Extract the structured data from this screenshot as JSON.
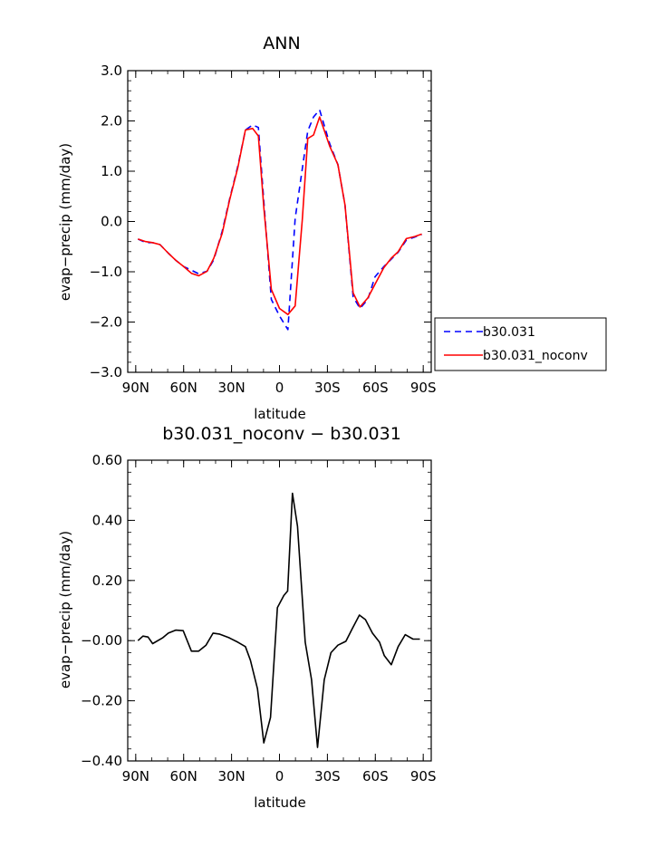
{
  "chart_data": [
    {
      "type": "line",
      "title": "ANN",
      "xlabel": "latitude",
      "ylabel": "evap−precip (mm/day)",
      "x_ticks": [
        {
          "value": -90,
          "label": "90N"
        },
        {
          "value": -60,
          "label": "60N"
        },
        {
          "value": -30,
          "label": "30N"
        },
        {
          "value": 0,
          "label": "0"
        },
        {
          "value": 30,
          "label": "30S"
        },
        {
          "value": 60,
          "label": "60S"
        },
        {
          "value": 90,
          "label": "90S"
        }
      ],
      "xlim": [
        -95,
        95
      ],
      "y_ticks": [
        {
          "value": 3.0,
          "label": "3.0"
        },
        {
          "value": 2.0,
          "label": "2.0"
        },
        {
          "value": 1.0,
          "label": "1.0"
        },
        {
          "value": 0.0,
          "label": "0.0"
        },
        {
          "value": -1.0,
          "label": "−1.0"
        },
        {
          "value": -2.0,
          "label": "−2.0"
        },
        {
          "value": -3.0,
          "label": "−3.0"
        }
      ],
      "ylim": [
        -3.0,
        3.0
      ],
      "legend": {
        "position": "right"
      },
      "series": [
        {
          "name": "b30.031",
          "color": "#0000ff",
          "dash": true,
          "x": [
            -88.6,
            -83.7,
            -79.5,
            -74.8,
            -69.6,
            -65.0,
            -59.9,
            -55.1,
            -50.6,
            -45.3,
            -41.1,
            -35.9,
            -31.2,
            -26.1,
            -21.3,
            -16.8,
            -13.2,
            -9.8,
            -5.1,
            0.0,
            5.3,
            9.8,
            14.3,
            17.7,
            21.3,
            25.1,
            31.4,
            36.6,
            41.0,
            46.1,
            50.4,
            55.3,
            59.8,
            65.3,
            70.0,
            74.3,
            79.4,
            84.6,
            89.1
          ],
          "y": [
            -0.35,
            -0.42,
            -0.42,
            -0.46,
            -0.63,
            -0.77,
            -0.9,
            -0.97,
            -1.04,
            -0.99,
            -0.76,
            -0.2,
            0.45,
            1.1,
            1.82,
            1.92,
            1.87,
            0.4,
            -1.55,
            -1.88,
            -2.15,
            0.06,
            1.05,
            1.8,
            2.08,
            2.22,
            1.55,
            1.13,
            0.33,
            -1.5,
            -1.73,
            -1.55,
            -1.1,
            -0.9,
            -0.75,
            -0.61,
            -0.37,
            -0.31,
            -0.26
          ]
        },
        {
          "name": "b30.031_noconv",
          "color": "#ff0000",
          "dash": false,
          "x": [
            -88.6,
            -83.7,
            -79.5,
            -74.8,
            -69.6,
            -65.0,
            -59.9,
            -55.1,
            -50.6,
            -45.3,
            -41.1,
            -35.9,
            -31.2,
            -26.1,
            -21.3,
            -16.8,
            -13.2,
            -9.8,
            -5.1,
            0.0,
            5.3,
            9.8,
            14.3,
            17.7,
            21.3,
            25.1,
            31.4,
            36.6,
            41.0,
            46.1,
            50.4,
            55.3,
            59.8,
            65.3,
            70.0,
            74.3,
            79.4,
            84.6,
            89.1
          ],
          "y": [
            -0.35,
            -0.4,
            -0.42,
            -0.46,
            -0.63,
            -0.77,
            -0.9,
            -1.03,
            -1.08,
            -0.99,
            -0.73,
            -0.24,
            0.43,
            1.07,
            1.82,
            1.85,
            1.7,
            0.28,
            -1.35,
            -1.73,
            -1.85,
            -1.68,
            0.04,
            1.65,
            1.72,
            2.08,
            1.5,
            1.13,
            0.33,
            -1.42,
            -1.7,
            -1.52,
            -1.25,
            -0.92,
            -0.73,
            -0.6,
            -0.34,
            -0.3,
            -0.25
          ]
        }
      ]
    },
    {
      "type": "line",
      "title": "b30.031_noconv − b30.031",
      "xlabel": "latitude",
      "ylabel": "evap−precip (mm/day)",
      "x_ticks": [
        {
          "value": -90,
          "label": "90N"
        },
        {
          "value": -60,
          "label": "60N"
        },
        {
          "value": -30,
          "label": "30N"
        },
        {
          "value": 0,
          "label": "0"
        },
        {
          "value": 30,
          "label": "30S"
        },
        {
          "value": 60,
          "label": "60S"
        },
        {
          "value": 90,
          "label": "90S"
        }
      ],
      "xlim": [
        -95,
        95
      ],
      "y_ticks": [
        {
          "value": 0.6,
          "label": "0.60"
        },
        {
          "value": 0.4,
          "label": "0.40"
        },
        {
          "value": 0.2,
          "label": "0.20"
        },
        {
          "value": 0.0,
          "label": "−0.00"
        },
        {
          "value": -0.2,
          "label": "−0.20"
        },
        {
          "value": -0.4,
          "label": "−0.40"
        }
      ],
      "ylim": [
        -0.4,
        0.6
      ],
      "series": [
        {
          "color": "#000000",
          "dash": false,
          "x": [
            -88.6,
            -85.5,
            -82.3,
            -79.4,
            -73.0,
            -69.6,
            -65.0,
            -60.3,
            -55.1,
            -50.6,
            -46.0,
            -41.6,
            -37.7,
            -31.7,
            -26.1,
            -21.3,
            -18.2,
            -13.8,
            -9.8,
            -5.6,
            -1.3,
            2.7,
            5.1,
            8.1,
            11.3,
            16.1,
            20.1,
            23.8,
            28.0,
            32.2,
            36.6,
            41.6,
            45.6,
            50.0,
            53.8,
            58.2,
            62.6,
            65.6,
            70.0,
            74.3,
            78.7,
            83.6,
            87.9
          ],
          "y": [
            0.0,
            0.015,
            0.012,
            -0.01,
            0.01,
            0.025,
            0.035,
            0.033,
            -0.035,
            -0.035,
            -0.015,
            0.025,
            0.022,
            0.01,
            -0.005,
            -0.02,
            -0.065,
            -0.16,
            -0.34,
            -0.255,
            0.11,
            0.15,
            0.165,
            0.49,
            0.38,
            -0.005,
            -0.13,
            -0.355,
            -0.13,
            -0.04,
            -0.015,
            -0.002,
            0.04,
            0.085,
            0.07,
            0.025,
            -0.005,
            -0.05,
            -0.08,
            -0.02,
            0.02,
            0.005,
            0.005
          ]
        }
      ]
    }
  ]
}
